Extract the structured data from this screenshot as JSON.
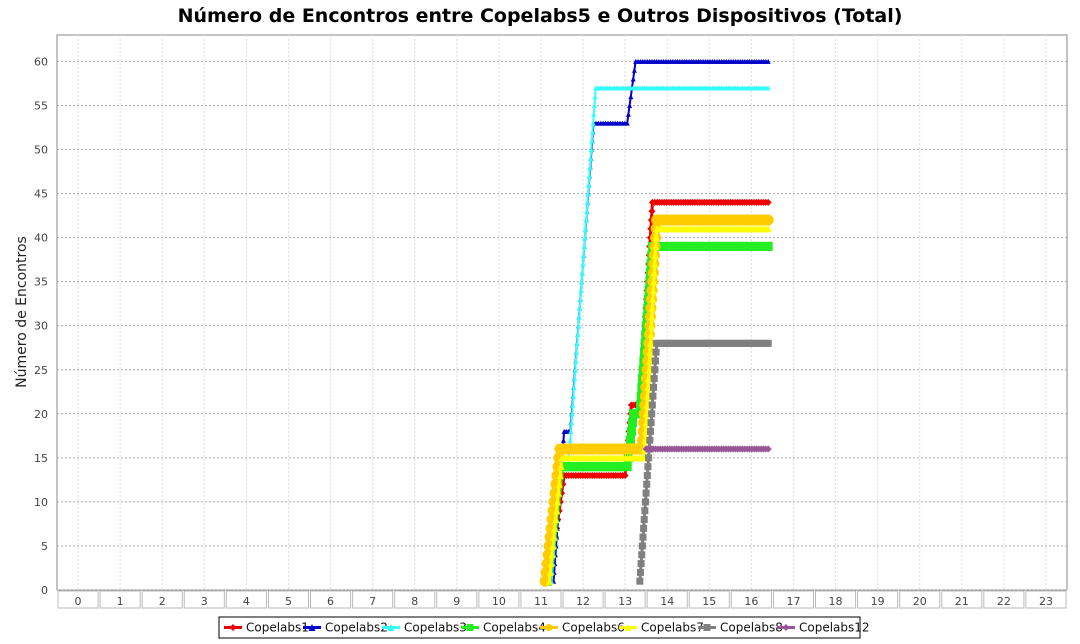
{
  "chart_data": {
    "type": "line",
    "title": "Número de Encontros entre Copelabs5 e Outros Dispositivos (Total)",
    "xlabel": "",
    "ylabel": "Número de Encontros",
    "xlim": [
      -0.5,
      23.5
    ],
    "ylim": [
      0,
      63
    ],
    "x_ticks": [
      "0",
      "1",
      "2",
      "3",
      "4",
      "5",
      "6",
      "7",
      "8",
      "9",
      "10",
      "11",
      "12",
      "13",
      "14",
      "15",
      "16",
      "17",
      "18",
      "19",
      "20",
      "21",
      "22",
      "23"
    ],
    "y_ticks": [
      0,
      5,
      10,
      15,
      20,
      25,
      30,
      35,
      40,
      45,
      50,
      55,
      60
    ],
    "grid": true,
    "legend_position": "bottom",
    "series": [
      {
        "name": "Copelabs1",
        "color": "#ee0000",
        "marker": "diamond",
        "width": 3,
        "steps": [
          [
            11.2,
            1
          ],
          [
            11.55,
            13
          ],
          [
            13.0,
            13
          ],
          [
            13.15,
            21
          ],
          [
            13.35,
            21
          ],
          [
            13.65,
            44
          ],
          [
            16.4,
            44
          ]
        ]
      },
      {
        "name": "Copelabs2",
        "color": "#0000cc",
        "marker": "triangle",
        "width": 2,
        "steps": [
          [
            11.3,
            1
          ],
          [
            11.55,
            18
          ],
          [
            11.7,
            18
          ],
          [
            12.25,
            53
          ],
          [
            13.05,
            53
          ],
          [
            13.25,
            60
          ],
          [
            16.4,
            60
          ]
        ]
      },
      {
        "name": "Copelabs3",
        "color": "#33ffff",
        "marker": "triangle",
        "width": 2,
        "steps": [
          [
            11.25,
            1
          ],
          [
            11.5,
            14
          ],
          [
            11.65,
            14
          ],
          [
            12.3,
            57
          ],
          [
            16.4,
            57
          ]
        ]
      },
      {
        "name": "Copelabs4",
        "color": "#22ee22",
        "marker": "square",
        "width": 4,
        "steps": [
          [
            11.15,
            1
          ],
          [
            11.45,
            14
          ],
          [
            13.05,
            14
          ],
          [
            13.2,
            20
          ],
          [
            13.35,
            20
          ],
          [
            13.65,
            39
          ],
          [
            16.4,
            39
          ]
        ]
      },
      {
        "name": "Copelabs6",
        "color": "#ffcc00",
        "marker": "circle",
        "width": 5,
        "steps": [
          [
            11.1,
            1
          ],
          [
            11.45,
            16
          ],
          [
            13.4,
            16
          ],
          [
            13.75,
            42
          ],
          [
            16.4,
            42
          ]
        ]
      },
      {
        "name": "Copelabs7",
        "color": "#ffff00",
        "marker": "triangle",
        "width": 3,
        "steps": [
          [
            11.2,
            1
          ],
          [
            11.5,
            15
          ],
          [
            13.45,
            15
          ],
          [
            13.75,
            41
          ],
          [
            16.4,
            41
          ]
        ]
      },
      {
        "name": "Copelabs8",
        "color": "#808080",
        "marker": "square",
        "width": 3,
        "steps": [
          [
            13.35,
            1
          ],
          [
            13.75,
            28
          ],
          [
            16.4,
            28
          ]
        ]
      },
      {
        "name": "Copelabs12",
        "color": "#995599",
        "marker": "diamond",
        "width": 3,
        "steps": [
          [
            13.5,
            16
          ],
          [
            16.4,
            16
          ]
        ]
      }
    ]
  }
}
